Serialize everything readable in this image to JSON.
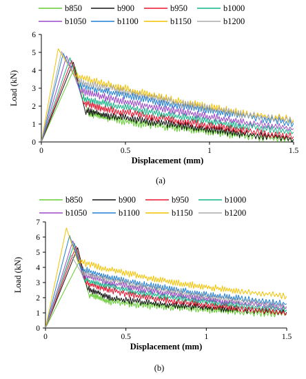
{
  "colors": {
    "b850": "#66cc33",
    "b900": "#111111",
    "b950": "#e8102a",
    "b1000": "#10b486",
    "b1050": "#9b48c8",
    "b1100": "#1e7fd6",
    "b1150": "#f2c200",
    "b1200": "#a8a8a8",
    "axis": "#000000"
  },
  "chart_data": [
    {
      "type": "line",
      "panel_label": "(a)",
      "xlabel": "Displacement (mm)",
      "ylabel": "Load (kN)",
      "xlim": [
        0,
        1.5
      ],
      "ylim": [
        0,
        6
      ],
      "xticks": [
        "0",
        "0.5",
        "1",
        "1.5"
      ],
      "yticks": [
        "0",
        "1",
        "2",
        "3",
        "4",
        "5",
        "6"
      ],
      "grid": false,
      "legend": "top",
      "series": [
        {
          "name": "b850",
          "color_key": "b850",
          "peak_x": 0.2,
          "peak_y": 4.2,
          "x": [
            0.28,
            0.4,
            0.6,
            0.8,
            1.0,
            1.2,
            1.5
          ],
          "y": [
            1.6,
            1.3,
            1.0,
            0.8,
            0.55,
            0.35,
            0.1
          ]
        },
        {
          "name": "b900",
          "color_key": "b900",
          "peak_x": 0.19,
          "peak_y": 4.45,
          "x": [
            0.26,
            0.4,
            0.6,
            0.8,
            1.0,
            1.2,
            1.5
          ],
          "y": [
            1.75,
            1.45,
            1.2,
            0.95,
            0.7,
            0.45,
            0.15
          ]
        },
        {
          "name": "b950",
          "color_key": "b950",
          "peak_x": 0.18,
          "peak_y": 4.55,
          "x": [
            0.25,
            0.4,
            0.6,
            0.8,
            1.0,
            1.2,
            1.5
          ],
          "y": [
            2.2,
            1.8,
            1.5,
            1.2,
            0.9,
            0.65,
            0.3
          ]
        },
        {
          "name": "b1000",
          "color_key": "b1000",
          "peak_x": 0.17,
          "peak_y": 4.7,
          "x": [
            0.24,
            0.4,
            0.6,
            0.8,
            1.0,
            1.2,
            1.5
          ],
          "y": [
            2.45,
            2.1,
            1.75,
            1.45,
            1.15,
            0.9,
            0.55
          ]
        },
        {
          "name": "b1050",
          "color_key": "b1050",
          "peak_x": 0.15,
          "peak_y": 4.8,
          "x": [
            0.23,
            0.4,
            0.6,
            0.8,
            1.0,
            1.2,
            1.5
          ],
          "y": [
            2.85,
            2.45,
            2.05,
            1.75,
            1.4,
            1.1,
            0.75
          ]
        },
        {
          "name": "b1100",
          "color_key": "b1100",
          "peak_x": 0.13,
          "peak_y": 4.95,
          "x": [
            0.22,
            0.4,
            0.6,
            0.8,
            1.0,
            1.2,
            1.5
          ],
          "y": [
            3.2,
            2.8,
            2.4,
            2.05,
            1.75,
            1.45,
            1.05
          ]
        },
        {
          "name": "b1150",
          "color_key": "b1150",
          "peak_x": 0.1,
          "peak_y": 5.2,
          "x": [
            0.2,
            0.4,
            0.6,
            0.8,
            1.0,
            1.2,
            1.5
          ],
          "y": [
            3.7,
            3.2,
            2.75,
            2.3,
            1.95,
            1.6,
            1.25
          ]
        },
        {
          "name": "b1200",
          "color_key": "b1200",
          "peak_x": 0.12,
          "peak_y": 5.05,
          "x": [
            0.21,
            0.4,
            0.6,
            0.8,
            1.0,
            1.2,
            1.5
          ],
          "y": [
            3.4,
            3.0,
            2.6,
            2.2,
            1.85,
            1.55,
            1.15
          ]
        }
      ]
    },
    {
      "type": "line",
      "panel_label": "(b)",
      "xlabel": "Displacement (mm)",
      "ylabel": "Load (kN)",
      "xlim": [
        0,
        1.5
      ],
      "ylim": [
        0,
        7
      ],
      "xticks": [
        "0",
        "0.5",
        "1",
        "1.5"
      ],
      "yticks": [
        "0",
        "1",
        "2",
        "3",
        "4",
        "5",
        "6",
        "7"
      ],
      "grid": false,
      "legend": "top",
      "series": [
        {
          "name": "b850",
          "color_key": "b850",
          "peak_x": 0.21,
          "peak_y": 4.4,
          "x": [
            0.27,
            0.4,
            0.6,
            0.8,
            1.0,
            1.2,
            1.5
          ],
          "y": [
            2.2,
            1.75,
            1.5,
            1.35,
            1.2,
            1.05,
            0.9
          ]
        },
        {
          "name": "b900",
          "color_key": "b900",
          "peak_x": 0.2,
          "peak_y": 5.3,
          "x": [
            0.26,
            0.4,
            0.6,
            0.8,
            1.0,
            1.2,
            1.5
          ],
          "y": [
            2.6,
            2.0,
            1.7,
            1.5,
            1.35,
            1.2,
            1.05
          ]
        },
        {
          "name": "b950",
          "color_key": "b950",
          "peak_x": 0.19,
          "peak_y": 5.4,
          "x": [
            0.25,
            0.4,
            0.6,
            0.8,
            1.0,
            1.2,
            1.5
          ],
          "y": [
            3.0,
            2.5,
            2.05,
            1.75,
            1.5,
            1.3,
            1.0
          ]
        },
        {
          "name": "b1000",
          "color_key": "b1000",
          "peak_x": 0.18,
          "peak_y": 5.6,
          "x": [
            0.24,
            0.4,
            0.6,
            0.8,
            1.0,
            1.2,
            1.5
          ],
          "y": [
            3.2,
            2.75,
            2.3,
            2.0,
            1.7,
            1.5,
            1.2
          ]
        },
        {
          "name": "b1050",
          "color_key": "b1050",
          "peak_x": 0.17,
          "peak_y": 5.75,
          "x": [
            0.23,
            0.4,
            0.6,
            0.8,
            1.0,
            1.2,
            1.5
          ],
          "y": [
            3.5,
            3.0,
            2.55,
            2.2,
            1.9,
            1.65,
            1.35
          ]
        },
        {
          "name": "b1100",
          "color_key": "b1100",
          "peak_x": 0.15,
          "peak_y": 6.1,
          "x": [
            0.22,
            0.4,
            0.6,
            0.8,
            1.0,
            1.2,
            1.5
          ],
          "y": [
            3.9,
            3.35,
            2.9,
            2.55,
            2.2,
            1.95,
            1.6
          ]
        },
        {
          "name": "b1150",
          "color_key": "b1150",
          "peak_x": 0.13,
          "peak_y": 6.6,
          "x": [
            0.2,
            0.4,
            0.6,
            0.8,
            1.0,
            1.2,
            1.5
          ],
          "y": [
            4.4,
            3.85,
            3.4,
            3.0,
            2.7,
            2.45,
            2.1
          ]
        },
        {
          "name": "b1200",
          "color_key": "b1200",
          "peak_x": 0.16,
          "peak_y": 4.8,
          "x": [
            0.22,
            0.4,
            0.6,
            0.8,
            1.0,
            1.2,
            1.5
          ],
          "y": [
            3.7,
            3.2,
            2.75,
            2.4,
            2.05,
            1.8,
            1.45
          ]
        }
      ]
    }
  ]
}
